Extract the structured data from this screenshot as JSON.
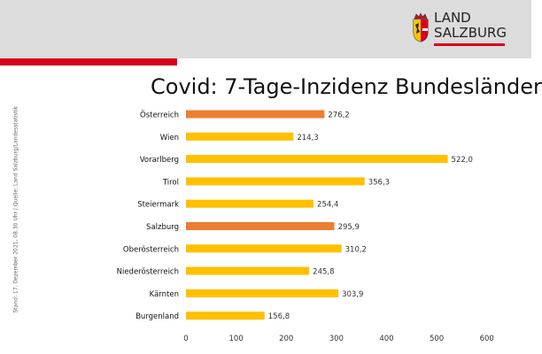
{
  "header": {
    "logo_line1": "LAND",
    "logo_line2": "SALZBURG"
  },
  "title": "Covid: 7-Tage-Inzidenz Bundesländer",
  "source_note": "Stand: 17. Dezember 2021, 08.30 Uhr | Quelle: Land Salzburg/Landesstatistik",
  "colors": {
    "highlight": "#ed7d31",
    "default": "#ffc000",
    "brand_red": "#d9001b"
  },
  "chart_data": {
    "type": "bar",
    "orientation": "horizontal",
    "categories": [
      "Österreich",
      "Wien",
      "Vorarlberg",
      "Tirol",
      "Steiermark",
      "Salzburg",
      "Oberösterreich",
      "Niederösterreich",
      "Kärnten",
      "Burgenland"
    ],
    "values": [
      276.2,
      214.3,
      522.0,
      356.3,
      254.4,
      295.9,
      310.2,
      245.8,
      303.9,
      156.8
    ],
    "value_labels": [
      "276,2",
      "214,3",
      "522,0",
      "356,3",
      "254,4",
      "295,9",
      "310,2",
      "245,8",
      "303,9",
      "156,8"
    ],
    "highlighted": [
      "Österreich",
      "Salzburg"
    ],
    "xlim": [
      0,
      600
    ],
    "xticks": [
      0,
      100,
      200,
      300,
      400,
      500,
      600
    ],
    "grid": false,
    "legend": "none"
  }
}
